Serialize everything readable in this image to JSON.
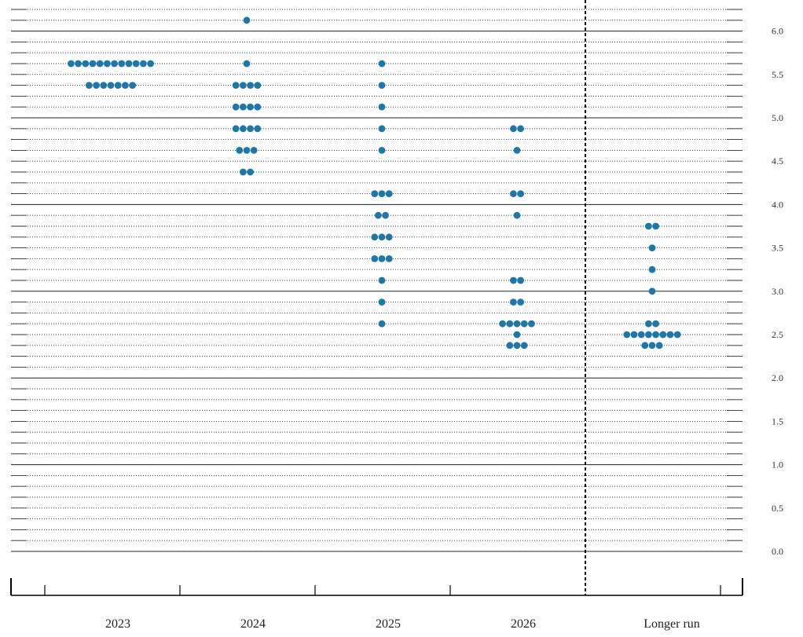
{
  "chart_data": {
    "type": "scatter",
    "title": "",
    "xlabel": "",
    "ylabel": "",
    "categories": [
      "2023",
      "2024",
      "2025",
      "2026",
      "Longer run"
    ],
    "ylim": [
      0,
      6.25
    ],
    "y_ticks": [
      "0.0",
      "0.5",
      "1.0",
      "1.5",
      "2.0",
      "2.5",
      "3.0",
      "3.5",
      "4.0",
      "4.5",
      "5.0",
      "5.5",
      "6.0"
    ],
    "grid": true,
    "grid_step": 0.125,
    "dot_color": "#1f77a8",
    "columns": [
      {
        "category": "2023",
        "dots": [
          {
            "y": 5.625,
            "count": 12
          },
          {
            "y": 5.375,
            "count": 7
          }
        ]
      },
      {
        "category": "2024",
        "dots": [
          {
            "y": 6.125,
            "count": 1
          },
          {
            "y": 5.625,
            "count": 1
          },
          {
            "y": 5.375,
            "count": 4
          },
          {
            "y": 5.125,
            "count": 4
          },
          {
            "y": 4.875,
            "count": 4
          },
          {
            "y": 4.625,
            "count": 3
          },
          {
            "y": 4.375,
            "count": 2
          }
        ]
      },
      {
        "category": "2025",
        "dots": [
          {
            "y": 5.625,
            "count": 1
          },
          {
            "y": 5.375,
            "count": 1
          },
          {
            "y": 5.125,
            "count": 1
          },
          {
            "y": 4.875,
            "count": 1
          },
          {
            "y": 4.625,
            "count": 1
          },
          {
            "y": 4.125,
            "count": 3
          },
          {
            "y": 3.875,
            "count": 2
          },
          {
            "y": 3.625,
            "count": 3
          },
          {
            "y": 3.375,
            "count": 3
          },
          {
            "y": 3.125,
            "count": 1
          },
          {
            "y": 2.875,
            "count": 1
          },
          {
            "y": 2.625,
            "count": 1
          }
        ]
      },
      {
        "category": "2026",
        "dots": [
          {
            "y": 4.875,
            "count": 2
          },
          {
            "y": 4.625,
            "count": 1
          },
          {
            "y": 4.125,
            "count": 2
          },
          {
            "y": 3.875,
            "count": 1
          },
          {
            "y": 3.125,
            "count": 2
          },
          {
            "y": 2.875,
            "count": 2
          },
          {
            "y": 2.625,
            "count": 5
          },
          {
            "y": 2.5,
            "count": 1
          },
          {
            "y": 2.375,
            "count": 3
          }
        ]
      },
      {
        "category": "Longer run",
        "dots": [
          {
            "y": 3.75,
            "count": 2
          },
          {
            "y": 3.5,
            "count": 1
          },
          {
            "y": 3.25,
            "count": 1
          },
          {
            "y": 3.0,
            "count": 1
          },
          {
            "y": 2.625,
            "count": 2
          },
          {
            "y": 2.5,
            "count": 8
          },
          {
            "y": 2.375,
            "count": 3
          }
        ]
      }
    ]
  }
}
